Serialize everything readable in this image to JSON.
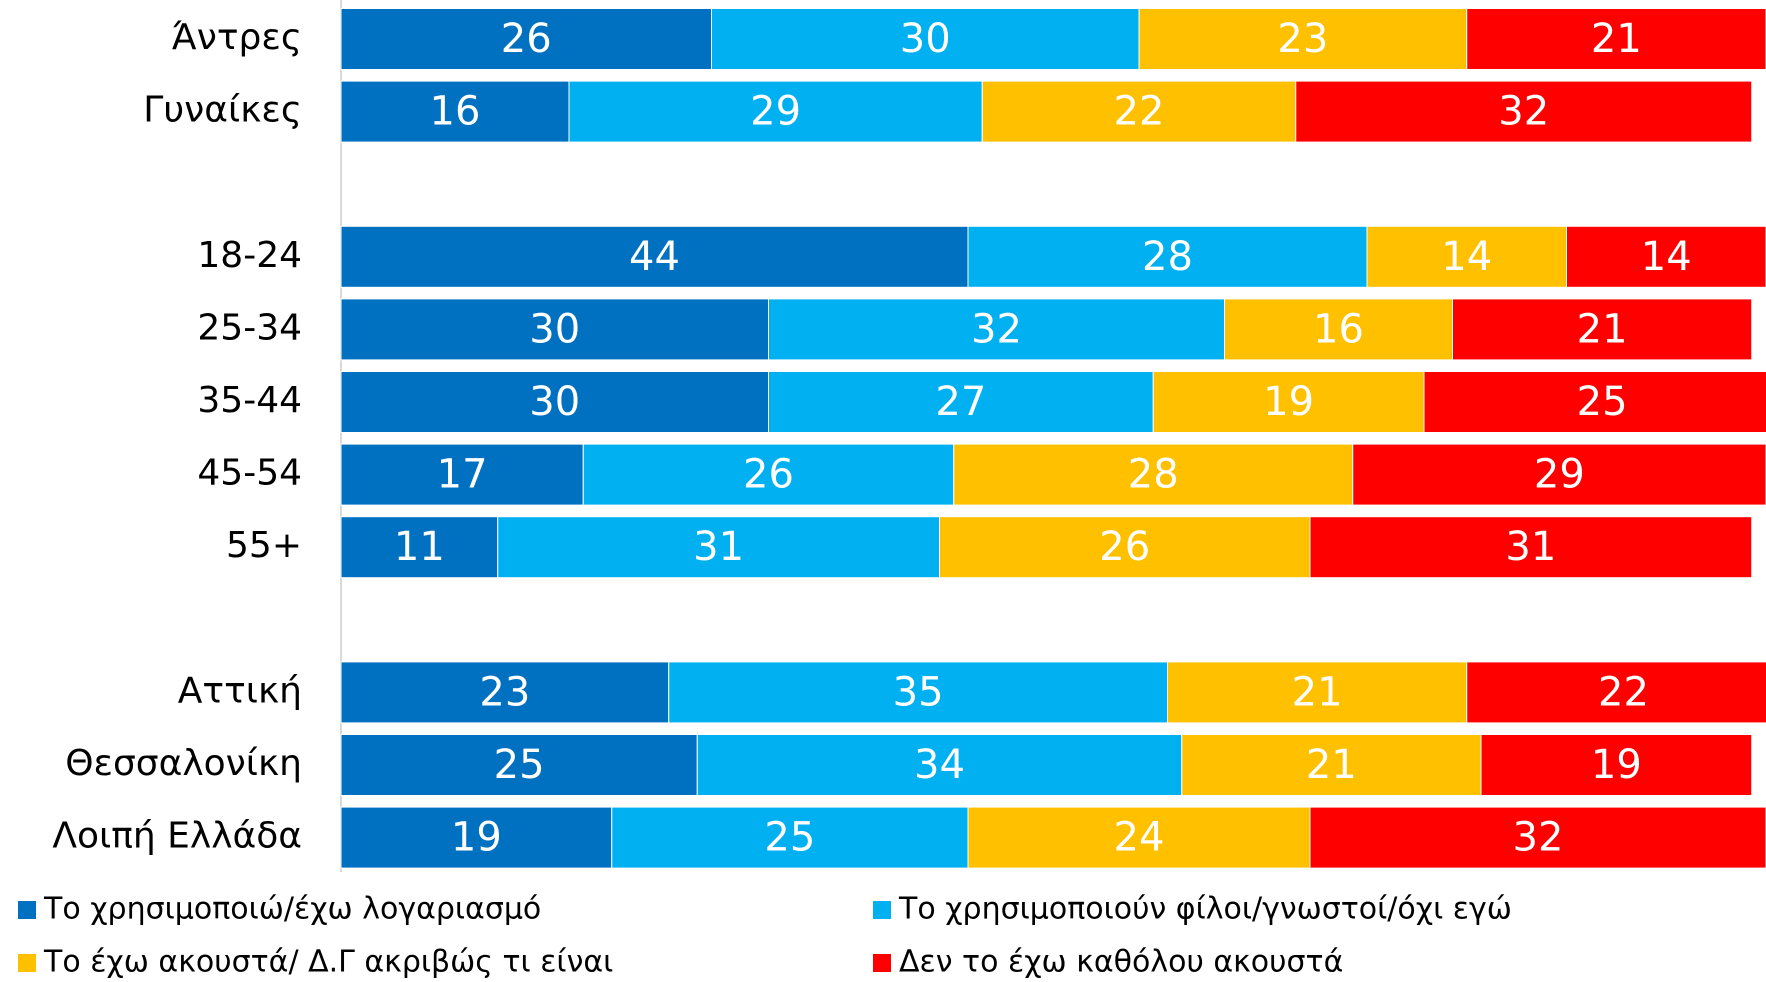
{
  "chart_data": {
    "type": "stacked-bar-horizontal",
    "categories": [
      "Άντρες",
      "Γυναίκες",
      null,
      "18-24",
      "25-34",
      "35-44",
      "45-54",
      "55+",
      null,
      "Αττική",
      "Θεσσαλονίκη",
      "Λοιπή Ελλάδα"
    ],
    "series": [
      {
        "name": "Το χρησιμοποιώ/έχω λογαριασμό",
        "color": "#0070c0",
        "values": [
          26,
          16,
          null,
          44,
          30,
          30,
          17,
          11,
          null,
          23,
          25,
          19
        ]
      },
      {
        "name": "Το χρησιμοποιούν φίλοι/γνωστοί/όχι εγώ",
        "color": "#00b0f0",
        "values": [
          30,
          29,
          null,
          28,
          32,
          27,
          26,
          31,
          null,
          35,
          34,
          25
        ]
      },
      {
        "name": "Το έχω ακουστά/ Δ.Γ ακριβώς τι είναι",
        "color": "#ffc000",
        "values": [
          23,
          22,
          null,
          14,
          16,
          19,
          28,
          26,
          null,
          21,
          21,
          24
        ]
      },
      {
        "name": "Δεν το έχω καθόλου ακουστά",
        "color": "#ff0000",
        "values": [
          21,
          32,
          null,
          14,
          21,
          25,
          29,
          31,
          null,
          22,
          19,
          32
        ]
      }
    ],
    "xlim": [
      0,
      100
    ],
    "legend": "bottom"
  }
}
